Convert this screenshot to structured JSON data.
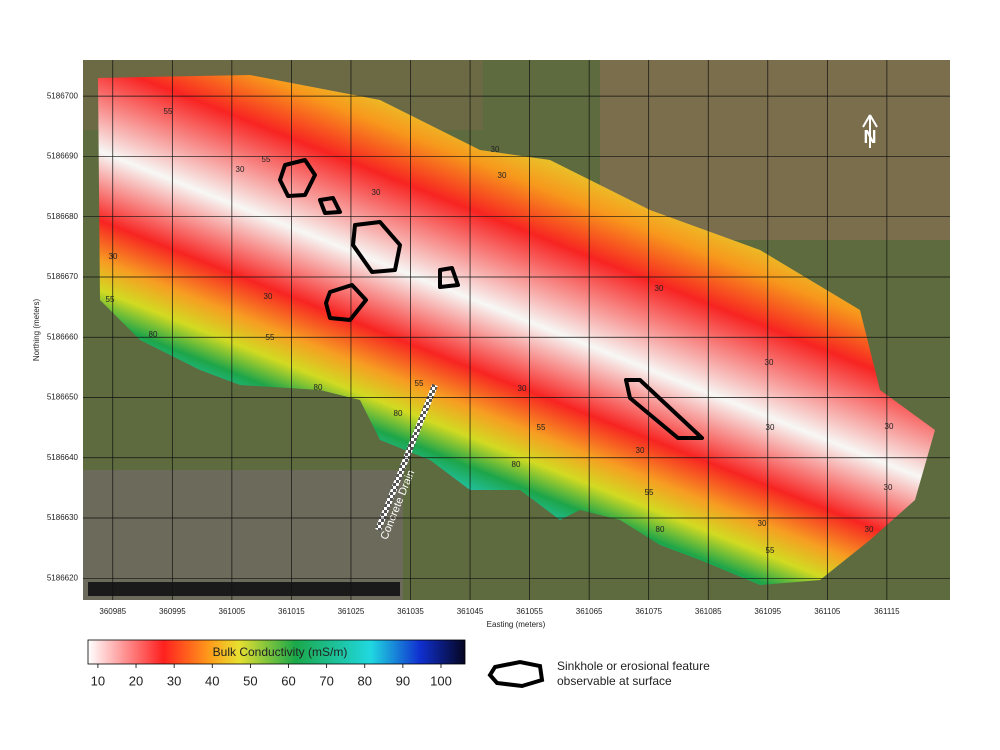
{
  "map": {
    "x_axis_label": "Easting (meters)",
    "y_axis_label": "Northing (meters)",
    "xlim": [
      360980,
      361125.6
    ],
    "ylim": [
      5186616.4,
      5186706
    ],
    "xticks": [
      360985,
      360995,
      361005,
      361015,
      361025,
      361035,
      361045,
      361055,
      361065,
      361075,
      361085,
      361095,
      361105,
      361115
    ],
    "yticks": [
      5186620,
      5186630,
      5186640,
      5186650,
      5186660,
      5186670,
      5186680,
      5186690,
      5186700
    ],
    "grid": true,
    "contour_labels": [
      55,
      55,
      30,
      30,
      30,
      30,
      30,
      30,
      55,
      80,
      55,
      80,
      55,
      80,
      30,
      30,
      30,
      55,
      80,
      30,
      55,
      80,
      30,
      30,
      30,
      30,
      30,
      55
    ],
    "annotation": "Concrete Drain",
    "north_label": "N",
    "colorbar": {
      "title": "Bulk Conductivity (mS/m)",
      "clim": [
        7.4,
        106.3
      ],
      "ticks": [
        10,
        20,
        30,
        40,
        50,
        60,
        70,
        80,
        90,
        100
      ]
    },
    "legend": {
      "label_lines": [
        "Sinkhole or erosional feature",
        "observable at surface"
      ]
    }
  }
}
